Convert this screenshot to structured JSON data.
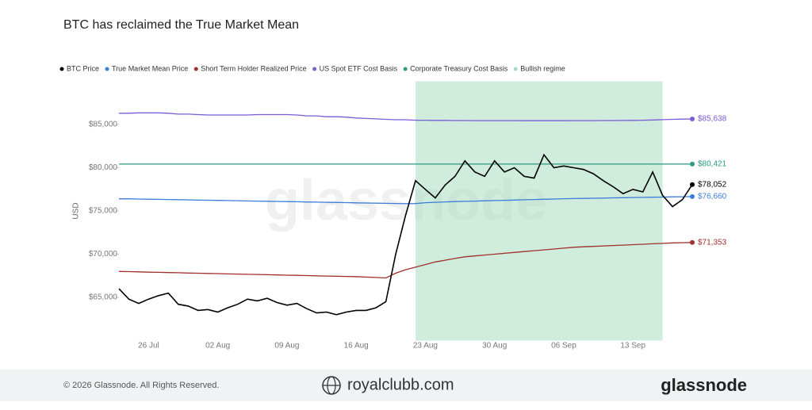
{
  "chart_data": {
    "type": "line",
    "title": "BTC has reclaimed the True Market Mean",
    "y_label": "USD",
    "watermark": "glassnode",
    "categories": [
      null,
      null,
      null,
      "26 Jul",
      null,
      null,
      null,
      null,
      null,
      null,
      "02 Aug",
      null,
      null,
      null,
      null,
      null,
      null,
      "09 Aug",
      null,
      null,
      null,
      null,
      null,
      null,
      "16 Aug",
      null,
      null,
      null,
      null,
      null,
      null,
      "23 Aug",
      null,
      null,
      null,
      null,
      null,
      null,
      "30 Aug",
      null,
      null,
      null,
      null,
      null,
      null,
      "06 Sep",
      null,
      null,
      null,
      null,
      null,
      null,
      "13 Sep",
      null,
      null,
      null,
      null,
      null,
      null
    ],
    "ylim": [
      60000,
      90000
    ],
    "yticks": [
      {
        "value": 65000,
        "label": "$65,000"
      },
      {
        "value": 70000,
        "label": "$70,000"
      },
      {
        "value": 75000,
        "label": "$75,000"
      },
      {
        "value": 80000,
        "label": "$80,000"
      },
      {
        "value": 85000,
        "label": "$85,000"
      }
    ],
    "shade": {
      "name": "Bullish regime",
      "color": "#a8dcc0",
      "from": 30,
      "to": 55
    },
    "series": [
      {
        "name": "BTC Price",
        "color": "#000000",
        "last_label": "$78,052",
        "values": [
          66000,
          64800,
          64300,
          64800,
          65200,
          65500,
          64200,
          64000,
          63500,
          63600,
          63300,
          63800,
          64200,
          64800,
          64600,
          64900,
          64400,
          64100,
          64300,
          63700,
          63200,
          63300,
          63000,
          63300,
          63500,
          63500,
          63800,
          64500,
          70000,
          74500,
          78500,
          77500,
          76500,
          78000,
          79000,
          80800,
          79500,
          79000,
          80800,
          79500,
          80000,
          79000,
          78800,
          81500,
          80000,
          80200,
          80000,
          79800,
          79300,
          78500,
          77800,
          77000,
          77500,
          77200,
          79500,
          76800,
          75500,
          76300,
          78052
        ]
      },
      {
        "name": "True Market Mean Price",
        "color": "#3b7dd8",
        "last_label": "$76,660",
        "values": [
          76400,
          76400,
          76380,
          76360,
          76340,
          76320,
          76300,
          76280,
          76260,
          76240,
          76220,
          76200,
          76180,
          76160,
          76140,
          76120,
          76100,
          76080,
          76060,
          76040,
          76020,
          76000,
          75980,
          75960,
          75940,
          75920,
          75900,
          75880,
          75860,
          75840,
          75850,
          75950,
          76000,
          76050,
          76080,
          76110,
          76140,
          76170,
          76200,
          76230,
          76260,
          76290,
          76320,
          76350,
          76380,
          76410,
          76430,
          76450,
          76470,
          76490,
          76510,
          76530,
          76550,
          76570,
          76590,
          76610,
          76630,
          76640,
          76660
        ]
      },
      {
        "name": "Short Term Holder Realized Price",
        "color": "#a0302a",
        "last_label": "$71,353",
        "values": [
          68000,
          67980,
          67950,
          67920,
          67900,
          67870,
          67850,
          67820,
          67800,
          67770,
          67750,
          67720,
          67700,
          67670,
          67650,
          67620,
          67600,
          67570,
          67550,
          67520,
          67500,
          67470,
          67450,
          67420,
          67400,
          67350,
          67300,
          67250,
          67800,
          68200,
          68500,
          68800,
          69100,
          69300,
          69500,
          69700,
          69800,
          69900,
          70000,
          70100,
          70200,
          70300,
          70400,
          70500,
          70600,
          70700,
          70800,
          70850,
          70900,
          70950,
          71000,
          71050,
          71100,
          71150,
          71200,
          71250,
          71300,
          71330,
          71353
        ]
      },
      {
        "name": "US Spot ETF Cost Basis",
        "color": "#7b5cd6",
        "last_label": "$85,638",
        "values": [
          86300,
          86300,
          86350,
          86350,
          86350,
          86300,
          86200,
          86200,
          86150,
          86100,
          86100,
          86100,
          86100,
          86100,
          86150,
          86150,
          86150,
          86150,
          86100,
          86000,
          86000,
          85900,
          85900,
          85850,
          85750,
          85700,
          85650,
          85600,
          85550,
          85550,
          85500,
          85500,
          85480,
          85480,
          85460,
          85460,
          85450,
          85450,
          85450,
          85450,
          85450,
          85440,
          85440,
          85440,
          85440,
          85440,
          85450,
          85450,
          85450,
          85460,
          85460,
          85470,
          85480,
          85500,
          85520,
          85560,
          85600,
          85620,
          85638
        ]
      },
      {
        "name": "Corporate Treasury Cost Basis",
        "color": "#2e9a82",
        "last_label": "$80,421",
        "values": [
          80421,
          80421,
          80421,
          80421,
          80421,
          80421,
          80421,
          80421,
          80421,
          80421,
          80421,
          80421,
          80421,
          80421,
          80421,
          80421,
          80421,
          80421,
          80421,
          80421,
          80421,
          80421,
          80421,
          80421,
          80421,
          80421,
          80421,
          80421,
          80421,
          80421,
          80421,
          80421,
          80421,
          80421,
          80421,
          80421,
          80421,
          80421,
          80421,
          80421,
          80421,
          80421,
          80421,
          80421,
          80421,
          80421,
          80421,
          80421,
          80421,
          80421,
          80421,
          80421,
          80421,
          80421,
          80421,
          80421,
          80421,
          80421,
          80421
        ]
      }
    ]
  },
  "footer": {
    "copyright": "© 2026 Glassnode. All Rights Reserved.",
    "site": "royalclubb.com",
    "brand": "glassnode"
  }
}
